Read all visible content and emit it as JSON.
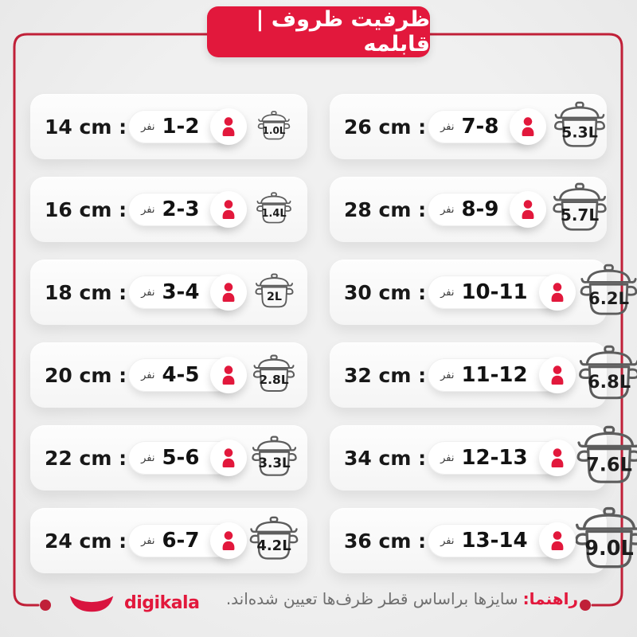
{
  "header": {
    "title": "ظرفیت ظروف | قابلمه"
  },
  "people_unit": "نفر",
  "columns": {
    "left": [
      {
        "size_label": "14 cm :",
        "people": "1-2",
        "capacity": "1.0L"
      },
      {
        "size_label": "16 cm :",
        "people": "2-3",
        "capacity": "1.4L"
      },
      {
        "size_label": "18 cm :",
        "people": "3-4",
        "capacity": "2L"
      },
      {
        "size_label": "20 cm :",
        "people": "4-5",
        "capacity": "2.8L"
      },
      {
        "size_label": "22 cm :",
        "people": "5-6",
        "capacity": "3.3L"
      },
      {
        "size_label": "24 cm :",
        "people": "6-7",
        "capacity": "4.2L"
      }
    ],
    "right": [
      {
        "size_label": "26 cm :",
        "people": "7-8",
        "capacity": "5.3L"
      },
      {
        "size_label": "28 cm :",
        "people": "8-9",
        "capacity": "5.7L"
      },
      {
        "size_label": "30 cm :",
        "people": "10-11",
        "capacity": "6.2L"
      },
      {
        "size_label": "32 cm :",
        "people": "11-12",
        "capacity": "6.8L"
      },
      {
        "size_label": "34 cm :",
        "people": "12-13",
        "capacity": "7.6L"
      },
      {
        "size_label": "36 cm :",
        "people": "13-14",
        "capacity": "9.0L"
      }
    ]
  },
  "footer": {
    "note_label": "راهنما:",
    "note_text": "سایزها براساس قطر ظرف‌ها تعیین شده‌اند.",
    "brand": "digikala"
  },
  "colors": {
    "accent": "#e2183c",
    "frame": "#c02038"
  },
  "chart_data": {
    "type": "table",
    "title": "ظرفیت ظروف | قابلمه",
    "columns": [
      "diameter_cm",
      "people",
      "capacity_liters"
    ],
    "rows": [
      [
        14,
        "1-2",
        1.0
      ],
      [
        16,
        "2-3",
        1.4
      ],
      [
        18,
        "3-4",
        2.0
      ],
      [
        20,
        "4-5",
        2.8
      ],
      [
        22,
        "5-6",
        3.3
      ],
      [
        24,
        "6-7",
        4.2
      ],
      [
        26,
        "7-8",
        5.3
      ],
      [
        28,
        "8-9",
        5.7
      ],
      [
        30,
        "10-11",
        6.2
      ],
      [
        32,
        "11-12",
        6.8
      ],
      [
        34,
        "12-13",
        7.6
      ],
      [
        36,
        "13-14",
        9.0
      ]
    ],
    "note": "سایزها براساس قطر ظرف‌ها تعیین شده‌اند."
  }
}
